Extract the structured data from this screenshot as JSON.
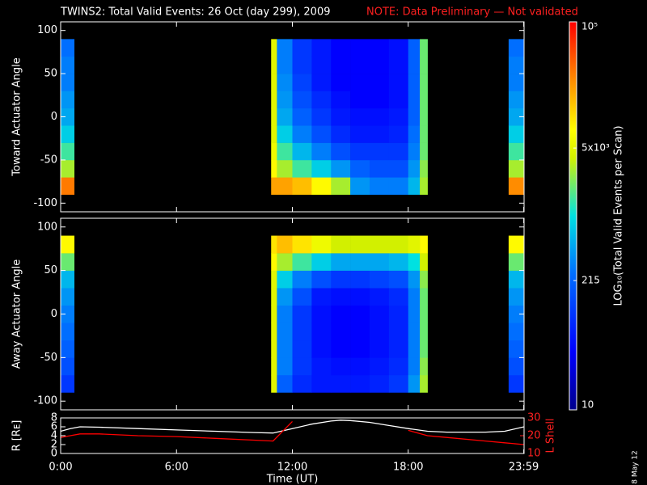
{
  "title": "TWINS2: Total Valid Events: 26 Oct (day 299), 2009",
  "note": "NOTE: Data Preliminary — Not validated",
  "footer_date": "8 May 12",
  "colorbar": {
    "label": "LOG₁₀(Total Valid Events per Scan)",
    "scale": "log",
    "lim": [
      10,
      100000
    ],
    "ticks": [
      10,
      215,
      {
        "value": 5000,
        "label": "5x10³"
      },
      {
        "value": 100000,
        "label": "10⁵"
      }
    ]
  },
  "chart_data": [
    {
      "type": "heatmap",
      "ylabel": "Toward Actuator Angle",
      "xlim": [
        0,
        24
      ],
      "ylim": [
        -110,
        110
      ],
      "yticks": [
        100,
        50,
        0,
        -50,
        -100
      ],
      "x_start": [
        0.0,
        10.9,
        11.2,
        12.0,
        13.0,
        14.0,
        15.0,
        16.0,
        17.0,
        18.0,
        18.6,
        23.2
      ],
      "x_end": [
        0.7,
        11.2,
        12.0,
        13.0,
        14.0,
        15.0,
        16.0,
        17.0,
        18.0,
        18.6,
        19.0,
        24.0
      ],
      "y_edges": [
        -90,
        -70,
        -50,
        -30,
        -10,
        10,
        30,
        50,
        70,
        90
      ],
      "z": [
        [
          30000,
          3000,
          1500,
          800,
          500,
          400,
          300,
          300,
          250
        ],
        [
          20000,
          8000,
          6000,
          5000,
          5000,
          5000,
          5000,
          5000,
          5000
        ],
        [
          20000,
          3000,
          1500,
          800,
          500,
          400,
          350,
          300,
          300
        ],
        [
          15000,
          1500,
          600,
          300,
          200,
          150,
          120,
          100,
          100
        ],
        [
          8000,
          800,
          300,
          150,
          100,
          80,
          60,
          60,
          60
        ],
        [
          3000,
          400,
          150,
          80,
          60,
          50,
          40,
          40,
          40
        ],
        [
          400,
          200,
          100,
          60,
          50,
          40,
          40,
          40,
          40
        ],
        [
          300,
          150,
          100,
          60,
          50,
          40,
          40,
          40,
          40
        ],
        [
          300,
          150,
          100,
          70,
          60,
          50,
          50,
          50,
          50
        ],
        [
          600,
          400,
          300,
          250,
          200,
          200,
          200,
          200,
          200
        ],
        [
          3000,
          2500,
          2000,
          2000,
          2000,
          2000,
          2000,
          2000,
          2000
        ],
        [
          25000,
          3000,
          1500,
          800,
          500,
          400,
          300,
          300,
          250
        ]
      ]
    },
    {
      "type": "heatmap",
      "ylabel": "Away Actuator Angle",
      "xlim": [
        0,
        24
      ],
      "ylim": [
        -110,
        110
      ],
      "yticks": [
        100,
        50,
        0,
        -50,
        -100
      ],
      "x_start": [
        0.0,
        10.9,
        11.2,
        12.0,
        13.0,
        14.0,
        15.0,
        16.0,
        17.0,
        18.0,
        18.6,
        23.2
      ],
      "x_end": [
        0.7,
        11.2,
        12.0,
        13.0,
        14.0,
        15.0,
        16.0,
        17.0,
        18.0,
        18.6,
        19.0,
        24.0
      ],
      "y_edges": [
        -90,
        -70,
        -50,
        -30,
        -10,
        10,
        30,
        50,
        70,
        90
      ],
      "z": [
        [
          100,
          150,
          200,
          250,
          300,
          400,
          600,
          2000,
          8000
        ],
        [
          5000,
          5000,
          5000,
          5000,
          5000,
          5000,
          5000,
          8000,
          10000
        ],
        [
          200,
          300,
          300,
          300,
          300,
          400,
          800,
          3000,
          15000
        ],
        [
          80,
          100,
          100,
          100,
          100,
          150,
          300,
          1500,
          10000
        ],
        [
          60,
          60,
          50,
          50,
          50,
          60,
          150,
          800,
          6000
        ],
        [
          60,
          50,
          40,
          40,
          40,
          50,
          100,
          500,
          4000
        ],
        [
          60,
          50,
          40,
          40,
          40,
          50,
          100,
          500,
          4000
        ],
        [
          70,
          60,
          50,
          50,
          50,
          60,
          120,
          500,
          4000
        ],
        [
          100,
          80,
          70,
          70,
          70,
          80,
          150,
          600,
          4000
        ],
        [
          400,
          300,
          300,
          300,
          300,
          300,
          400,
          1000,
          5000
        ],
        [
          3000,
          2500,
          2000,
          2000,
          2000,
          2000,
          2500,
          4000,
          8000
        ],
        [
          100,
          150,
          200,
          250,
          300,
          400,
          600,
          2000,
          8000
        ]
      ]
    },
    {
      "type": "line",
      "xlabel": "Time (UT)",
      "ylabel": "R [Rᴇ]",
      "y2label": "L Shell",
      "xlim": [
        0,
        24
      ],
      "xticks": [
        {
          "value": 0,
          "label": "0:00"
        },
        {
          "value": 6,
          "label": "6:00"
        },
        {
          "value": 12,
          "label": "12:00"
        },
        {
          "value": 18,
          "label": "18:00"
        },
        {
          "value": 23.983,
          "label": "23:59"
        }
      ],
      "ylim": [
        0,
        8
      ],
      "yticks": [
        0,
        2,
        4,
        6,
        8
      ],
      "y2lim": [
        10,
        30
      ],
      "y2ticks": [
        10,
        20,
        30
      ],
      "x": [
        0,
        0.5,
        1,
        2,
        4,
        6,
        8,
        10,
        11,
        12,
        13,
        14,
        14.5,
        15,
        16,
        17,
        18,
        19,
        20,
        22,
        23,
        24
      ],
      "series": [
        {
          "color": "#ffffff",
          "values": [
            5.0,
            5.6,
            6.0,
            5.9,
            5.6,
            5.3,
            5.0,
            4.7,
            4.6,
            5.6,
            6.6,
            7.3,
            7.5,
            7.4,
            7.0,
            6.3,
            5.6,
            5.0,
            4.8,
            4.8,
            5.0,
            6.0
          ]
        },
        {
          "color": "#ff0000",
          "axis": "y2",
          "values": [
            19,
            20,
            21,
            21,
            20,
            19.5,
            18.5,
            17.5,
            17,
            28,
            null,
            null,
            null,
            null,
            null,
            null,
            23,
            20,
            19,
            17,
            16,
            15
          ]
        }
      ]
    }
  ]
}
